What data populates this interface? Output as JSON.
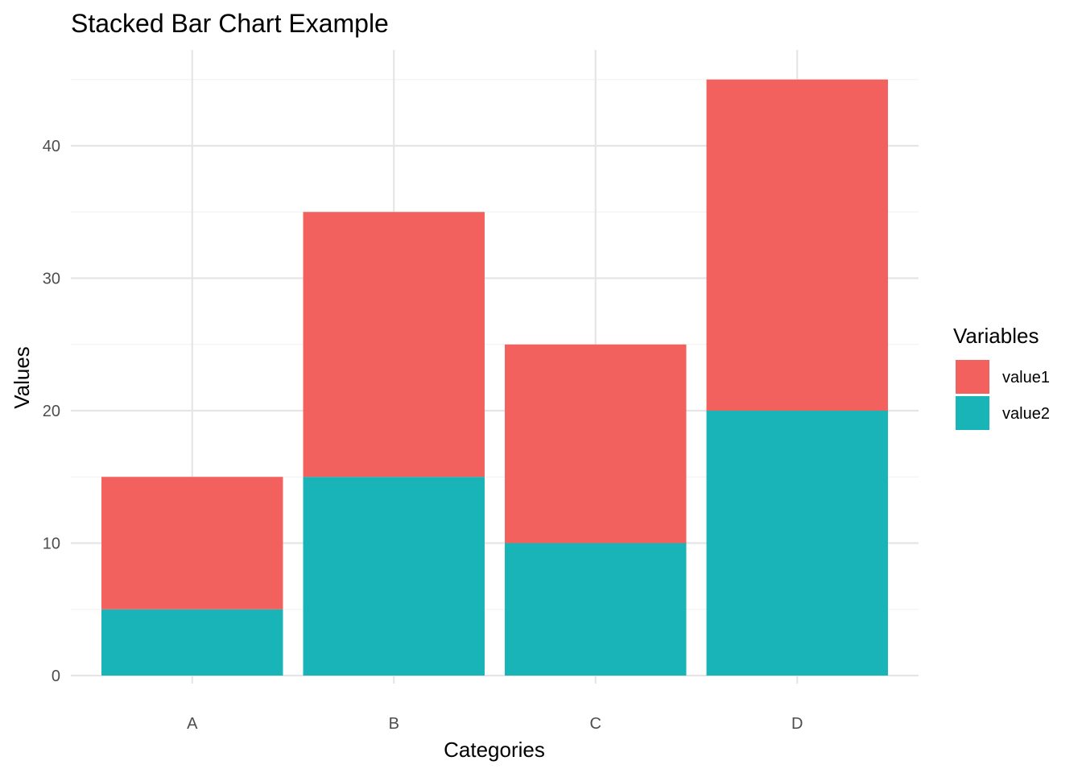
{
  "chart_data": {
    "type": "bar",
    "stacked": true,
    "title": "Stacked Bar Chart Example",
    "xlabel": "Categories",
    "ylabel": "Values",
    "categories": [
      "A",
      "B",
      "C",
      "D"
    ],
    "series": [
      {
        "name": "value1",
        "values": [
          10,
          20,
          15,
          25
        ],
        "color": "#F3615E"
      },
      {
        "name": "value2",
        "values": [
          5,
          15,
          10,
          20
        ],
        "color": "#19B4B8"
      }
    ],
    "stack_order_bottom_to_top": [
      "value2",
      "value1"
    ],
    "ylim": [
      0,
      47.25
    ],
    "yticks": [
      0,
      10,
      20,
      30,
      40
    ],
    "grid": true,
    "legend": {
      "title": "Variables",
      "position": "right"
    }
  }
}
